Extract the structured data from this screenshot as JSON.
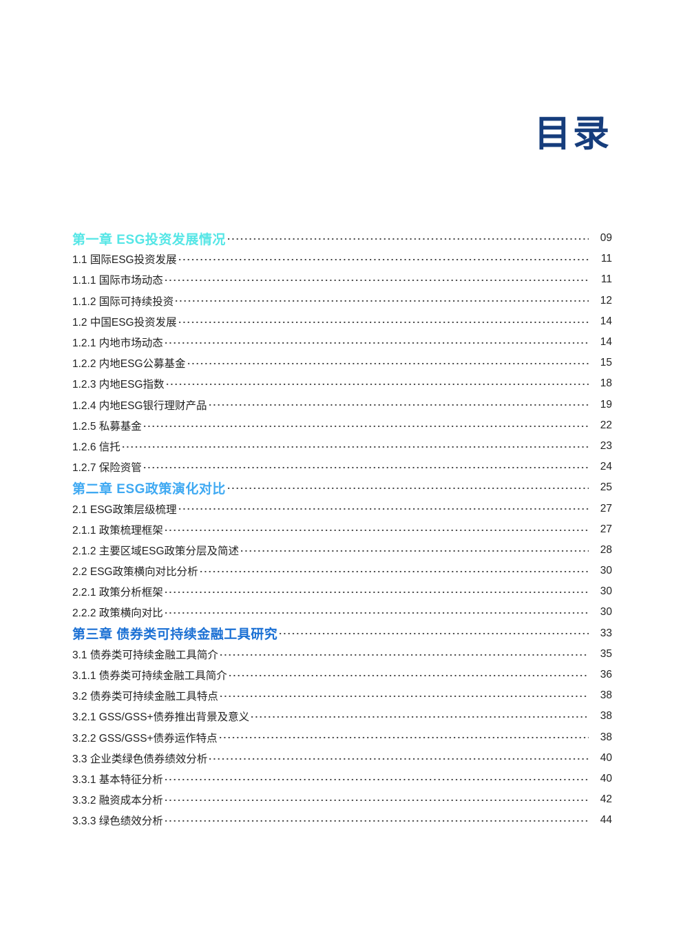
{
  "page_title": "目录",
  "colors": {
    "title": "#163D7C",
    "chapter1_accent": "#55E6E6",
    "chapter2_accent": "#3FA9F2",
    "chapter3_accent": "#1B70D4",
    "body_text": "#222222"
  },
  "toc": {
    "entries": [
      {
        "label": "第一章 ESG投资发展情况",
        "page": "09",
        "level": "chapter",
        "color": "#55E6E6"
      },
      {
        "label": "1.1 国际ESG投资发展",
        "page": "11",
        "level": "item"
      },
      {
        "label": "1.1.1 国际市场动态",
        "page": "11",
        "level": "item"
      },
      {
        "label": "1.1.2 国际可持续投资",
        "page": "12",
        "level": "item"
      },
      {
        "label": "1.2 中国ESG投资发展",
        "page": "14",
        "level": "item"
      },
      {
        "label": "1.2.1 内地市场动态",
        "page": "14",
        "level": "item"
      },
      {
        "label": "1.2.2 内地ESG公募基金",
        "page": "15",
        "level": "item"
      },
      {
        "label": "1.2.3 内地ESG指数",
        "page": "18",
        "level": "item"
      },
      {
        "label": "1.2.4 内地ESG银行理财产品",
        "page": "19",
        "level": "item"
      },
      {
        "label": "1.2.5 私募基金",
        "page": "22",
        "level": "item"
      },
      {
        "label": "1.2.6 信托",
        "page": "23",
        "level": "item"
      },
      {
        "label": "1.2.7 保险资管",
        "page": "24",
        "level": "item"
      },
      {
        "label": "第二章 ESG政策演化对比",
        "page": "25",
        "level": "chapter",
        "color": "#3FA9F2"
      },
      {
        "label": "2.1 ESG政策层级梳理",
        "page": "27",
        "level": "item"
      },
      {
        "label": "2.1.1 政策梳理框架",
        "page": "27",
        "level": "item"
      },
      {
        "label": "2.1.2 主要区域ESG政策分层及简述",
        "page": "28",
        "level": "item"
      },
      {
        "label": "2.2 ESG政策横向对比分析",
        "page": "30",
        "level": "item"
      },
      {
        "label": "2.2.1 政策分析框架",
        "page": "30",
        "level": "item"
      },
      {
        "label": "2.2.2 政策横向对比",
        "page": "30",
        "level": "item"
      },
      {
        "label": "第三章 债券类可持续金融工具研究",
        "page": "33",
        "level": "chapter",
        "color": "#1B70D4"
      },
      {
        "label": "3.1 债券类可持续金融工具简介",
        "page": "35",
        "level": "item"
      },
      {
        "label": "3.1.1 债券类可持续金融工具简介",
        "page": "36",
        "level": "item"
      },
      {
        "label": "3.2 债券类可持续金融工具特点",
        "page": "38",
        "level": "item"
      },
      {
        "label": "3.2.1 GSS/GSS+债券推出背景及意义",
        "page": "38",
        "level": "item"
      },
      {
        "label": "3.2.2 GSS/GSS+债券运作特点",
        "page": "38",
        "level": "item"
      },
      {
        "label": "3.3 企业类绿色债券绩效分析",
        "page": "40",
        "level": "item"
      },
      {
        "label": "3.3.1 基本特征分析",
        "page": "40",
        "level": "item"
      },
      {
        "label": "3.3.2 融资成本分析",
        "page": "42",
        "level": "item"
      },
      {
        "label": "3.3.3 绿色绩效分析",
        "page": "44",
        "level": "item"
      }
    ]
  }
}
